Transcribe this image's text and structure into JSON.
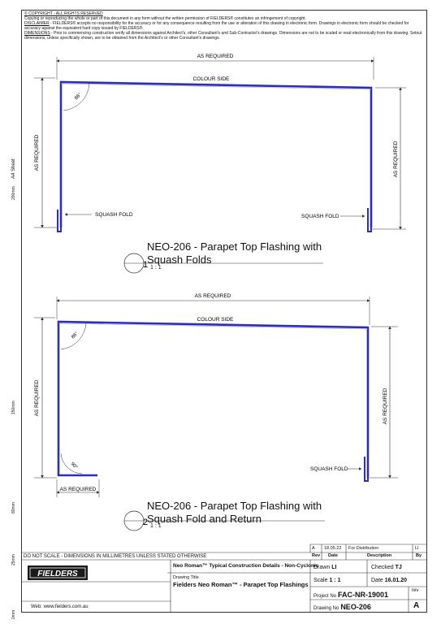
{
  "notes": {
    "copyright": "© COPYRIGHT - ALL RIGHTS RESERVED",
    "copyright_text": "Copying or reproducing the whole or part of this document in any form without the written permission of FIELDERS® constitutes an infringement of copyright.",
    "disclaimer_label": "DISCLAIMER",
    "disclaimer_text": " - FIELDERS® accepts no responsibility for the accuracy or for any consequence resulting from the use or alteration of this drawing in electronic form. Drawings in electronic form should be checked for accuracy against the equivalent hard copy issued by FIELDERS®.",
    "dimensions_label": "DIMENSIONS",
    "dimensions_text": " - Prior to commencing construction verify all dimensions against Architect's, other Consultant's and Sub-Contractor's drawings. Dimensions are not to be scaled or read electronically from this drawing. Setout dimensions, unless specifically shown, are to be obtained from the Architect's or other Consultant's drawings."
  },
  "sidebar": {
    "sheet_size": "A4 Sheet",
    "mark_200": "200mm",
    "mark_150": "150mm",
    "mark_80": "80mm",
    "mark_25": "25mm",
    "mark_0": "0mm"
  },
  "detail1": {
    "number": "1",
    "title_line1": "NEO-206 - Parapet Top Flashing with",
    "title_line2": "Squash Folds",
    "scale": "1 : 1",
    "dim_top": "AS REQUIRED",
    "dim_left": "AS REQUIRED",
    "dim_right": "AS REQUIRED",
    "colour_side": "COLOUR SIDE",
    "angle": "86°",
    "squash_left": "SQUASH FOLD",
    "squash_right": "SQUASH FOLD"
  },
  "detail2": {
    "number": "2",
    "title_line1": "NEO-206 - Parapet Top Flashing with",
    "title_line2": "Squash Fold and Return",
    "scale": "1 : 1",
    "dim_top": "AS REQUIRED",
    "dim_left": "AS REQUIRED",
    "dim_right": "AS REQUIRED",
    "dim_return": "AS REQUIRED",
    "colour_side": "COLOUR SIDE",
    "angle_top": "86°",
    "angle_bottom": "90°",
    "squash_right": "SQUASH FOLD"
  },
  "titleblock": {
    "do_not_scale": "DO NOT SCALE - DIMENSIONS IN MILLIMETRES UNLESS STATED OTHERWISE",
    "brand": "FIELDERS",
    "web": "Web: www.fielders.com.au",
    "series": "Neo Roman™ Typical Construction Details - Non-Cyclonic",
    "drawing_title_label": "Drawing Title",
    "drawing_title": "Fielders Neo Roman™ - Parapet Top Flashings",
    "rev_row": {
      "rev": "A",
      "date": "18.05.22",
      "description": "For Distribution",
      "by": "LI"
    },
    "rev_headers": {
      "rev": "Rev",
      "date": "Date",
      "description": "Description",
      "by": "By"
    },
    "drawn_label": "Drawn",
    "drawn": "LI",
    "checked_label": "Checked",
    "checked": "TJ",
    "scale_label": "Scale",
    "scale": "1 : 1",
    "date_label": "Date",
    "date": "16.01.20",
    "project_label": "Project No",
    "project": "FAC-NR-19001",
    "rev_label": "rev",
    "rev": "A",
    "drawing_no_label": "Drawing No",
    "drawing_no": "NEO-206"
  },
  "colors": {
    "flashing": "#2d2db8",
    "line": "#333333"
  }
}
